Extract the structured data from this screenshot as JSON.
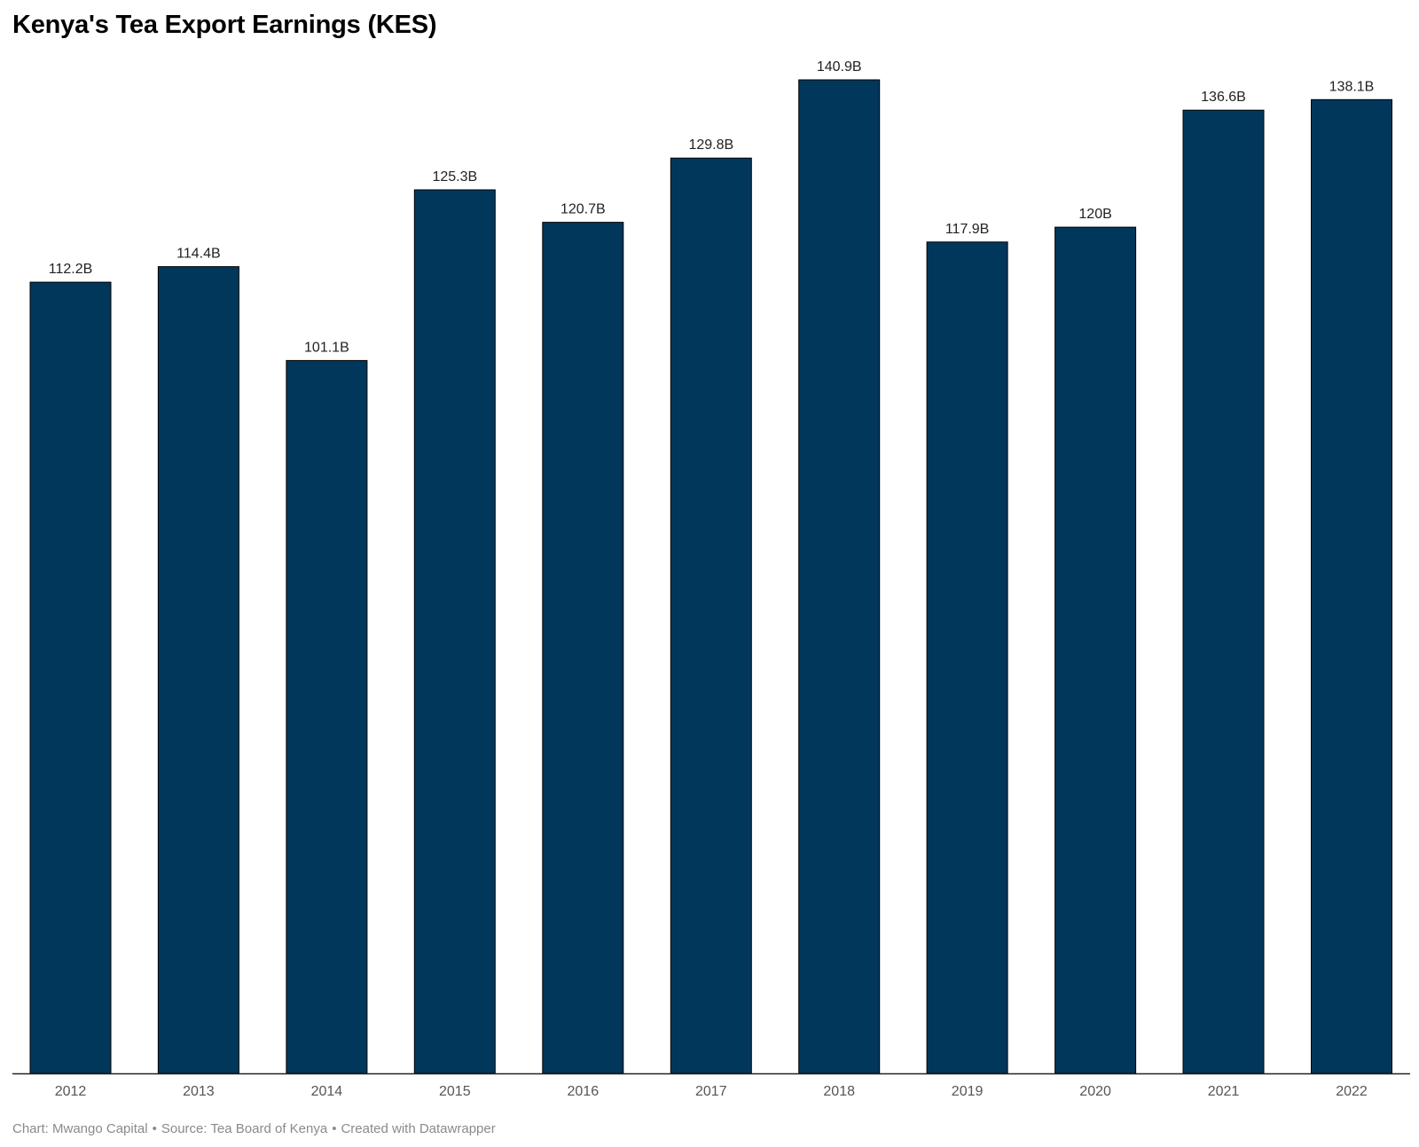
{
  "title": "Kenya's Tea Export Earnings (KES)",
  "footer": {
    "chart_credit": "Chart: Mwango Capital",
    "separator": "•",
    "source": "Source: Tea Board of Kenya",
    "created_with": "Created with Datawrapper"
  },
  "colors": {
    "bar": "#02375c",
    "baseline": "#222222"
  },
  "chart_data": {
    "type": "bar",
    "title": "Kenya's Tea Export Earnings (KES)",
    "xlabel": "",
    "ylabel": "",
    "categories": [
      "2012",
      "2013",
      "2014",
      "2015",
      "2016",
      "2017",
      "2018",
      "2019",
      "2020",
      "2021",
      "2022"
    ],
    "values": [
      112.2,
      114.4,
      101.1,
      125.3,
      120.7,
      129.8,
      140.9,
      117.9,
      120,
      136.6,
      138.1
    ],
    "value_labels": [
      "112.2B",
      "114.4B",
      "101.1B",
      "125.3B",
      "120.7B",
      "129.8B",
      "140.9B",
      "117.9B",
      "120B",
      "136.6B",
      "138.1B"
    ],
    "ylim": [
      0,
      140.9
    ],
    "grid": false,
    "legend": "none"
  }
}
